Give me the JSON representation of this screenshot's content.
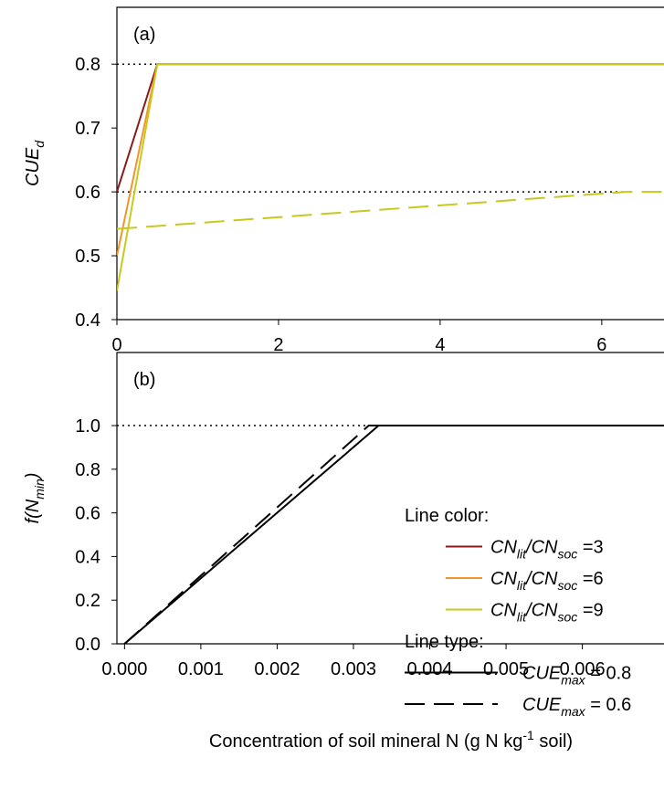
{
  "chart_data": [
    {
      "type": "line",
      "panel_label": "(a)",
      "y_label": [
        {
          "text": "CUE",
          "style": "i"
        },
        {
          "text": "d",
          "style": "sub"
        }
      ],
      "xlim": [
        0,
        6.77
      ],
      "xticks": [
        0,
        2,
        4,
        6
      ],
      "ylim": [
        0.4,
        0.889
      ],
      "yticks": [
        0.4,
        0.5,
        0.6,
        0.7,
        0.8
      ],
      "series": [
        {
          "color": "#000000",
          "dash": "dot",
          "x": [
            0,
            0.5
          ],
          "values": [
            0.8,
            0.8
          ]
        },
        {
          "color": "#000000",
          "dash": "dot",
          "x": [
            0,
            6.3
          ],
          "values": [
            0.6,
            0.6
          ]
        },
        {
          "color": "#8b1a1a",
          "dash": "solid",
          "x": [
            0,
            0.5,
            6.77
          ],
          "values": [
            0.6,
            0.8,
            0.8
          ]
        },
        {
          "color": "#f0962a",
          "dash": "solid",
          "x": [
            0,
            0.5,
            6.77
          ],
          "values": [
            0.5,
            0.8,
            0.8
          ]
        },
        {
          "color": "#c8c81e",
          "dash": "solid",
          "x": [
            0,
            0.5,
            6.77
          ],
          "values": [
            0.445,
            0.8,
            0.8
          ]
        },
        {
          "color": "#c8c81e",
          "dash": "dash",
          "x": [
            0,
            6.3,
            6.77
          ],
          "values": [
            0.542,
            0.6,
            0.6
          ]
        }
      ]
    },
    {
      "type": "line",
      "panel_label": "(b)",
      "y_label": [
        {
          "text": "f(N",
          "style": "i"
        },
        {
          "text": "min",
          "style": "sub"
        },
        {
          "text": ")",
          "style": "i"
        }
      ],
      "x_label": [
        {
          "text": "Concentration of soil mineral N (g N kg",
          "style": ""
        },
        {
          "text": "-1",
          "style": "sup"
        },
        {
          "text": " soil)",
          "style": ""
        }
      ],
      "xlim": [
        -0.0001,
        0.00707
      ],
      "xticks": [
        {
          "value": 0,
          "label": "0.000"
        },
        {
          "value": 0.001,
          "label": "0.001"
        },
        {
          "value": 0.002,
          "label": "0.002"
        },
        {
          "value": 0.003,
          "label": "0.003"
        },
        {
          "value": 0.004,
          "label": "0.004"
        },
        {
          "value": 0.005,
          "label": "0.005"
        },
        {
          "value": 0.006,
          "label": "0.006"
        }
      ],
      "ylim": [
        0,
        1.335
      ],
      "yticks": [
        {
          "value": 0,
          "label": "0.0"
        },
        0.2,
        0.4,
        0.6,
        0.8,
        {
          "value": 1,
          "label": "1.0"
        }
      ],
      "series": [
        {
          "color": "#000000",
          "dash": "dot",
          "x": [
            -0.0001,
            0.00333
          ],
          "values": [
            1,
            1
          ]
        },
        {
          "color": "#000000",
          "dash": "solid",
          "x": [
            0,
            0.00333,
            0.00707
          ],
          "values": [
            0,
            1,
            1
          ]
        },
        {
          "color": "#000000",
          "dash": "dash",
          "x": [
            0,
            0.0032,
            0.00707
          ],
          "values": [
            0,
            1,
            1
          ]
        }
      ],
      "legend": [
        {
          "text": [
            {
              "text": "Line color:",
              "style": ""
            }
          ]
        },
        {
          "color": "#8b1a1a",
          "text": [
            {
              "text": "CN",
              "style": "i"
            },
            {
              "text": "lit",
              "style": "sub"
            },
            {
              "text": "/CN",
              "style": "i"
            },
            {
              "text": "soc",
              "style": "sub"
            },
            {
              "text": " =3",
              "style": ""
            }
          ]
        },
        {
          "color": "#f0962a",
          "text": [
            {
              "text": "CN",
              "style": "i"
            },
            {
              "text": "lit",
              "style": "sub"
            },
            {
              "text": "/CN",
              "style": "i"
            },
            {
              "text": "soc",
              "style": "sub"
            },
            {
              "text": " =6",
              "style": ""
            }
          ]
        },
        {
          "color": "#c8c81e",
          "text": [
            {
              "text": "CN",
              "style": "i"
            },
            {
              "text": "lit",
              "style": "sub"
            },
            {
              "text": "/CN",
              "style": "i"
            },
            {
              "text": "soc",
              "style": "sub"
            },
            {
              "text": " =9",
              "style": ""
            }
          ]
        },
        {
          "text": [
            {
              "text": "Line type:",
              "style": ""
            }
          ]
        },
        {
          "color": "#000000",
          "dash": "solid",
          "text": [
            {
              "text": "CUE",
              "style": "i"
            },
            {
              "text": "max",
              "style": "sub"
            },
            {
              "text": " = 0.8",
              "style": ""
            }
          ]
        },
        {
          "color": "#000000",
          "dash": "dash",
          "text": [
            {
              "text": "CUE",
              "style": "i"
            },
            {
              "text": "max",
              "style": "sub"
            },
            {
              "text": " = 0.6",
              "style": ""
            }
          ]
        }
      ]
    }
  ]
}
